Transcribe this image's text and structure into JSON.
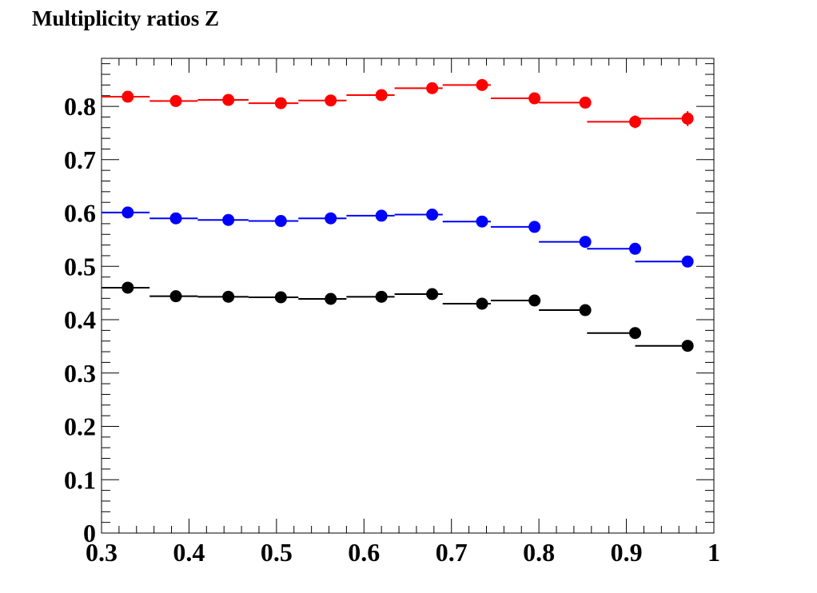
{
  "chart_data": {
    "type": "scatter",
    "title": "Multiplicity ratios Z",
    "xlabel": "",
    "ylabel": "",
    "xlim": [
      0.3,
      1.0
    ],
    "ylim": [
      0.0,
      0.89
    ],
    "x_tick_labels": [
      "0.3",
      "0.4",
      "0.5",
      "0.6",
      "0.7",
      "0.8",
      "0.9",
      "1"
    ],
    "y_tick_labels": [
      "0",
      "0.1",
      "0.2",
      "0.3",
      "0.4",
      "0.5",
      "0.6",
      "0.7",
      "0.8"
    ],
    "x_ticks": [
      0.3,
      0.4,
      0.5,
      0.6,
      0.7,
      0.8,
      0.9,
      1.0
    ],
    "y_ticks": [
      0,
      0.1,
      0.2,
      0.3,
      0.4,
      0.5,
      0.6,
      0.7,
      0.8
    ],
    "bin_edges": [
      0.3,
      0.355,
      0.41,
      0.468,
      0.525,
      0.58,
      0.635,
      0.69,
      0.745,
      0.8,
      0.855,
      0.91,
      0.967,
      1.0
    ],
    "x": [
      0.33,
      0.385,
      0.445,
      0.505,
      0.562,
      0.62,
      0.678,
      0.735,
      0.795,
      0.853,
      0.91,
      0.97
    ],
    "series": [
      {
        "color": "#ff0000",
        "values": [
          0.818,
          0.81,
          0.812,
          0.806,
          0.811,
          0.821,
          0.834,
          0.84,
          0.815,
          0.807,
          0.771,
          0.777
        ],
        "errors": [
          0.004,
          0.004,
          0.004,
          0.004,
          0.004,
          0.004,
          0.005,
          0.005,
          0.006,
          0.008,
          0.012,
          0.014
        ]
      },
      {
        "color": "#0000ff",
        "values": [
          0.601,
          0.59,
          0.587,
          0.585,
          0.59,
          0.595,
          0.597,
          0.584,
          0.574,
          0.546,
          0.533,
          0.509
        ],
        "errors": [
          0.003,
          0.003,
          0.003,
          0.003,
          0.003,
          0.003,
          0.004,
          0.004,
          0.005,
          0.006,
          0.007,
          0.008
        ]
      },
      {
        "color": "#000000",
        "values": [
          0.46,
          0.444,
          0.443,
          0.442,
          0.439,
          0.443,
          0.448,
          0.43,
          0.436,
          0.418,
          0.375,
          0.351
        ],
        "errors": [
          0.003,
          0.003,
          0.003,
          0.003,
          0.003,
          0.003,
          0.004,
          0.004,
          0.005,
          0.006,
          0.007,
          0.008
        ]
      }
    ]
  }
}
